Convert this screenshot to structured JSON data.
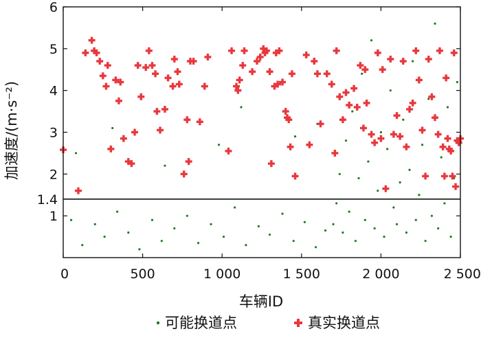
{
  "chart_data": {
    "type": "scatter",
    "xlabel": "车辆ID",
    "ylabel": "加速度/(m·s⁻²)",
    "xlim": [
      0,
      2500
    ],
    "ylim": [
      0,
      6
    ],
    "x_ticks": [
      0,
      500,
      1000,
      1500,
      2000,
      2500
    ],
    "x_tick_labels": [
      "0",
      "500",
      "1 000",
      "1 500",
      "2 000",
      "2 500"
    ],
    "y_ticks": [
      1,
      1.4,
      2,
      3,
      4,
      5,
      6
    ],
    "y_tick_labels": [
      "1",
      "1.4",
      "2",
      "3",
      "4",
      "5",
      "6"
    ],
    "threshold": {
      "y": 1.4,
      "label": "1.4"
    },
    "grid": false,
    "legend_position": "bottom-center",
    "colors": {
      "candidate": "#1e7a1e",
      "actual": "#e8383d",
      "axis": "#111111"
    },
    "series": [
      {
        "name": "可能换道点",
        "marker": "dot",
        "color": "#1e7a1e",
        "points": [
          [
            50,
            0.9
          ],
          [
            120,
            0.3
          ],
          [
            200,
            0.8
          ],
          [
            260,
            0.5
          ],
          [
            340,
            1.1
          ],
          [
            410,
            0.6
          ],
          [
            480,
            0.2
          ],
          [
            560,
            0.9
          ],
          [
            620,
            0.4
          ],
          [
            700,
            0.7
          ],
          [
            780,
            1.0
          ],
          [
            850,
            0.35
          ],
          [
            930,
            0.8
          ],
          [
            1010,
            0.5
          ],
          [
            1080,
            1.2
          ],
          [
            1150,
            0.3
          ],
          [
            1230,
            0.75
          ],
          [
            1300,
            0.55
          ],
          [
            1380,
            1.05
          ],
          [
            1450,
            0.4
          ],
          [
            1520,
            0.85
          ],
          [
            1590,
            0.25
          ],
          [
            1650,
            0.65
          ],
          [
            80,
            2.5
          ],
          [
            310,
            3.1
          ],
          [
            640,
            2.2
          ],
          [
            980,
            2.7
          ],
          [
            1120,
            3.6
          ],
          [
            1460,
            2.9
          ],
          [
            1600,
            3.2
          ],
          [
            1700,
            0.8
          ],
          [
            1720,
            1.3
          ],
          [
            1740,
            2.0
          ],
          [
            1760,
            0.6
          ],
          [
            1780,
            2.8
          ],
          [
            1800,
            1.1
          ],
          [
            1820,
            3.5
          ],
          [
            1840,
            0.4
          ],
          [
            1860,
            1.9
          ],
          [
            1880,
            4.4
          ],
          [
            1900,
            0.9
          ],
          [
            1920,
            2.3
          ],
          [
            1940,
            5.2
          ],
          [
            1960,
            0.7
          ],
          [
            1980,
            1.6
          ],
          [
            2000,
            3.0
          ],
          [
            2020,
            0.5
          ],
          [
            2040,
            2.6
          ],
          [
            2060,
            4.0
          ],
          [
            2080,
            1.2
          ],
          [
            2100,
            0.8
          ],
          [
            2120,
            1.8
          ],
          [
            2140,
            3.3
          ],
          [
            2160,
            0.6
          ],
          [
            2180,
            2.1
          ],
          [
            2200,
            4.7
          ],
          [
            2220,
            0.9
          ],
          [
            2240,
            1.5
          ],
          [
            2260,
            2.7
          ],
          [
            2280,
            0.4
          ],
          [
            2300,
            3.8
          ],
          [
            2320,
            1.0
          ],
          [
            2340,
            5.6
          ],
          [
            2360,
            0.7
          ],
          [
            2380,
            2.4
          ],
          [
            2400,
            1.3
          ],
          [
            2420,
            3.6
          ],
          [
            2440,
            0.5
          ],
          [
            2460,
            1.9
          ],
          [
            2480,
            4.2
          ]
        ]
      },
      {
        "name": "真实换道点",
        "marker": "plus",
        "color": "#e8383d",
        "points": [
          [
            0,
            2.58
          ],
          [
            95,
            1.6
          ],
          [
            140,
            4.9
          ],
          [
            180,
            5.2
          ],
          [
            195,
            4.95
          ],
          [
            210,
            4.9
          ],
          [
            230,
            4.7
          ],
          [
            250,
            4.35
          ],
          [
            270,
            4.1
          ],
          [
            280,
            4.6
          ],
          [
            300,
            2.6
          ],
          [
            330,
            4.25
          ],
          [
            350,
            3.75
          ],
          [
            360,
            4.2
          ],
          [
            380,
            2.85
          ],
          [
            410,
            2.3
          ],
          [
            430,
            2.25
          ],
          [
            450,
            3.0
          ],
          [
            470,
            4.6
          ],
          [
            490,
            3.85
          ],
          [
            520,
            4.55
          ],
          [
            540,
            4.95
          ],
          [
            560,
            4.6
          ],
          [
            580,
            4.4
          ],
          [
            590,
            3.5
          ],
          [
            610,
            3.05
          ],
          [
            640,
            3.55
          ],
          [
            660,
            4.3
          ],
          [
            690,
            4.1
          ],
          [
            700,
            4.75
          ],
          [
            720,
            4.45
          ],
          [
            730,
            4.15
          ],
          [
            760,
            2.0
          ],
          [
            780,
            3.3
          ],
          [
            790,
            2.3
          ],
          [
            800,
            4.7
          ],
          [
            820,
            4.7
          ],
          [
            860,
            3.25
          ],
          [
            890,
            4.1
          ],
          [
            910,
            4.8
          ],
          [
            1040,
            2.55
          ],
          [
            1060,
            4.95
          ],
          [
            1090,
            4.1
          ],
          [
            1100,
            4.0
          ],
          [
            1110,
            4.25
          ],
          [
            1130,
            4.6
          ],
          [
            1140,
            4.95
          ],
          [
            1190,
            4.45
          ],
          [
            1220,
            4.7
          ],
          [
            1240,
            4.8
          ],
          [
            1260,
            5.0
          ],
          [
            1270,
            4.9
          ],
          [
            1280,
            4.95
          ],
          [
            1300,
            4.45
          ],
          [
            1310,
            2.25
          ],
          [
            1330,
            4.1
          ],
          [
            1340,
            4.9
          ],
          [
            1350,
            4.15
          ],
          [
            1360,
            4.95
          ],
          [
            1380,
            4.2
          ],
          [
            1400,
            3.5
          ],
          [
            1410,
            3.35
          ],
          [
            1420,
            3.3
          ],
          [
            1430,
            2.65
          ],
          [
            1440,
            4.4
          ],
          [
            1460,
            1.95
          ],
          [
            1530,
            4.85
          ],
          [
            1550,
            2.7
          ],
          [
            1580,
            4.7
          ],
          [
            1600,
            4.4
          ],
          [
            1620,
            3.2
          ],
          [
            1660,
            4.4
          ],
          [
            1690,
            4.15
          ],
          [
            1710,
            2.5
          ],
          [
            1720,
            4.95
          ],
          [
            1740,
            3.85
          ],
          [
            1760,
            3.3
          ],
          [
            1780,
            3.95
          ],
          [
            1800,
            3.65
          ],
          [
            1830,
            4.05
          ],
          [
            1850,
            3.6
          ],
          [
            1870,
            4.6
          ],
          [
            1890,
            3.1
          ],
          [
            1900,
            4.5
          ],
          [
            1910,
            3.7
          ],
          [
            1940,
            2.95
          ],
          [
            1960,
            2.75
          ],
          [
            1980,
            4.9
          ],
          [
            2000,
            2.85
          ],
          [
            2010,
            4.5
          ],
          [
            2030,
            1.65
          ],
          [
            2060,
            4.75
          ],
          [
            2080,
            2.95
          ],
          [
            2100,
            3.4
          ],
          [
            2120,
            2.9
          ],
          [
            2140,
            4.7
          ],
          [
            2160,
            2.65
          ],
          [
            2180,
            3.55
          ],
          [
            2200,
            3.7
          ],
          [
            2220,
            4.95
          ],
          [
            2240,
            4.25
          ],
          [
            2260,
            3.05
          ],
          [
            2280,
            1.95
          ],
          [
            2300,
            4.75
          ],
          [
            2320,
            3.85
          ],
          [
            2340,
            3.35
          ],
          [
            2360,
            2.95
          ],
          [
            2370,
            4.95
          ],
          [
            2390,
            2.65
          ],
          [
            2400,
            1.95
          ],
          [
            2410,
            4.3
          ],
          [
            2420,
            2.85
          ],
          [
            2430,
            2.6
          ],
          [
            2440,
            2.55
          ],
          [
            2450,
            1.95
          ],
          [
            2460,
            4.9
          ],
          [
            2470,
            1.7
          ],
          [
            2480,
            2.8
          ],
          [
            2490,
            2.75
          ],
          [
            2500,
            2.85
          ]
        ]
      }
    ]
  }
}
